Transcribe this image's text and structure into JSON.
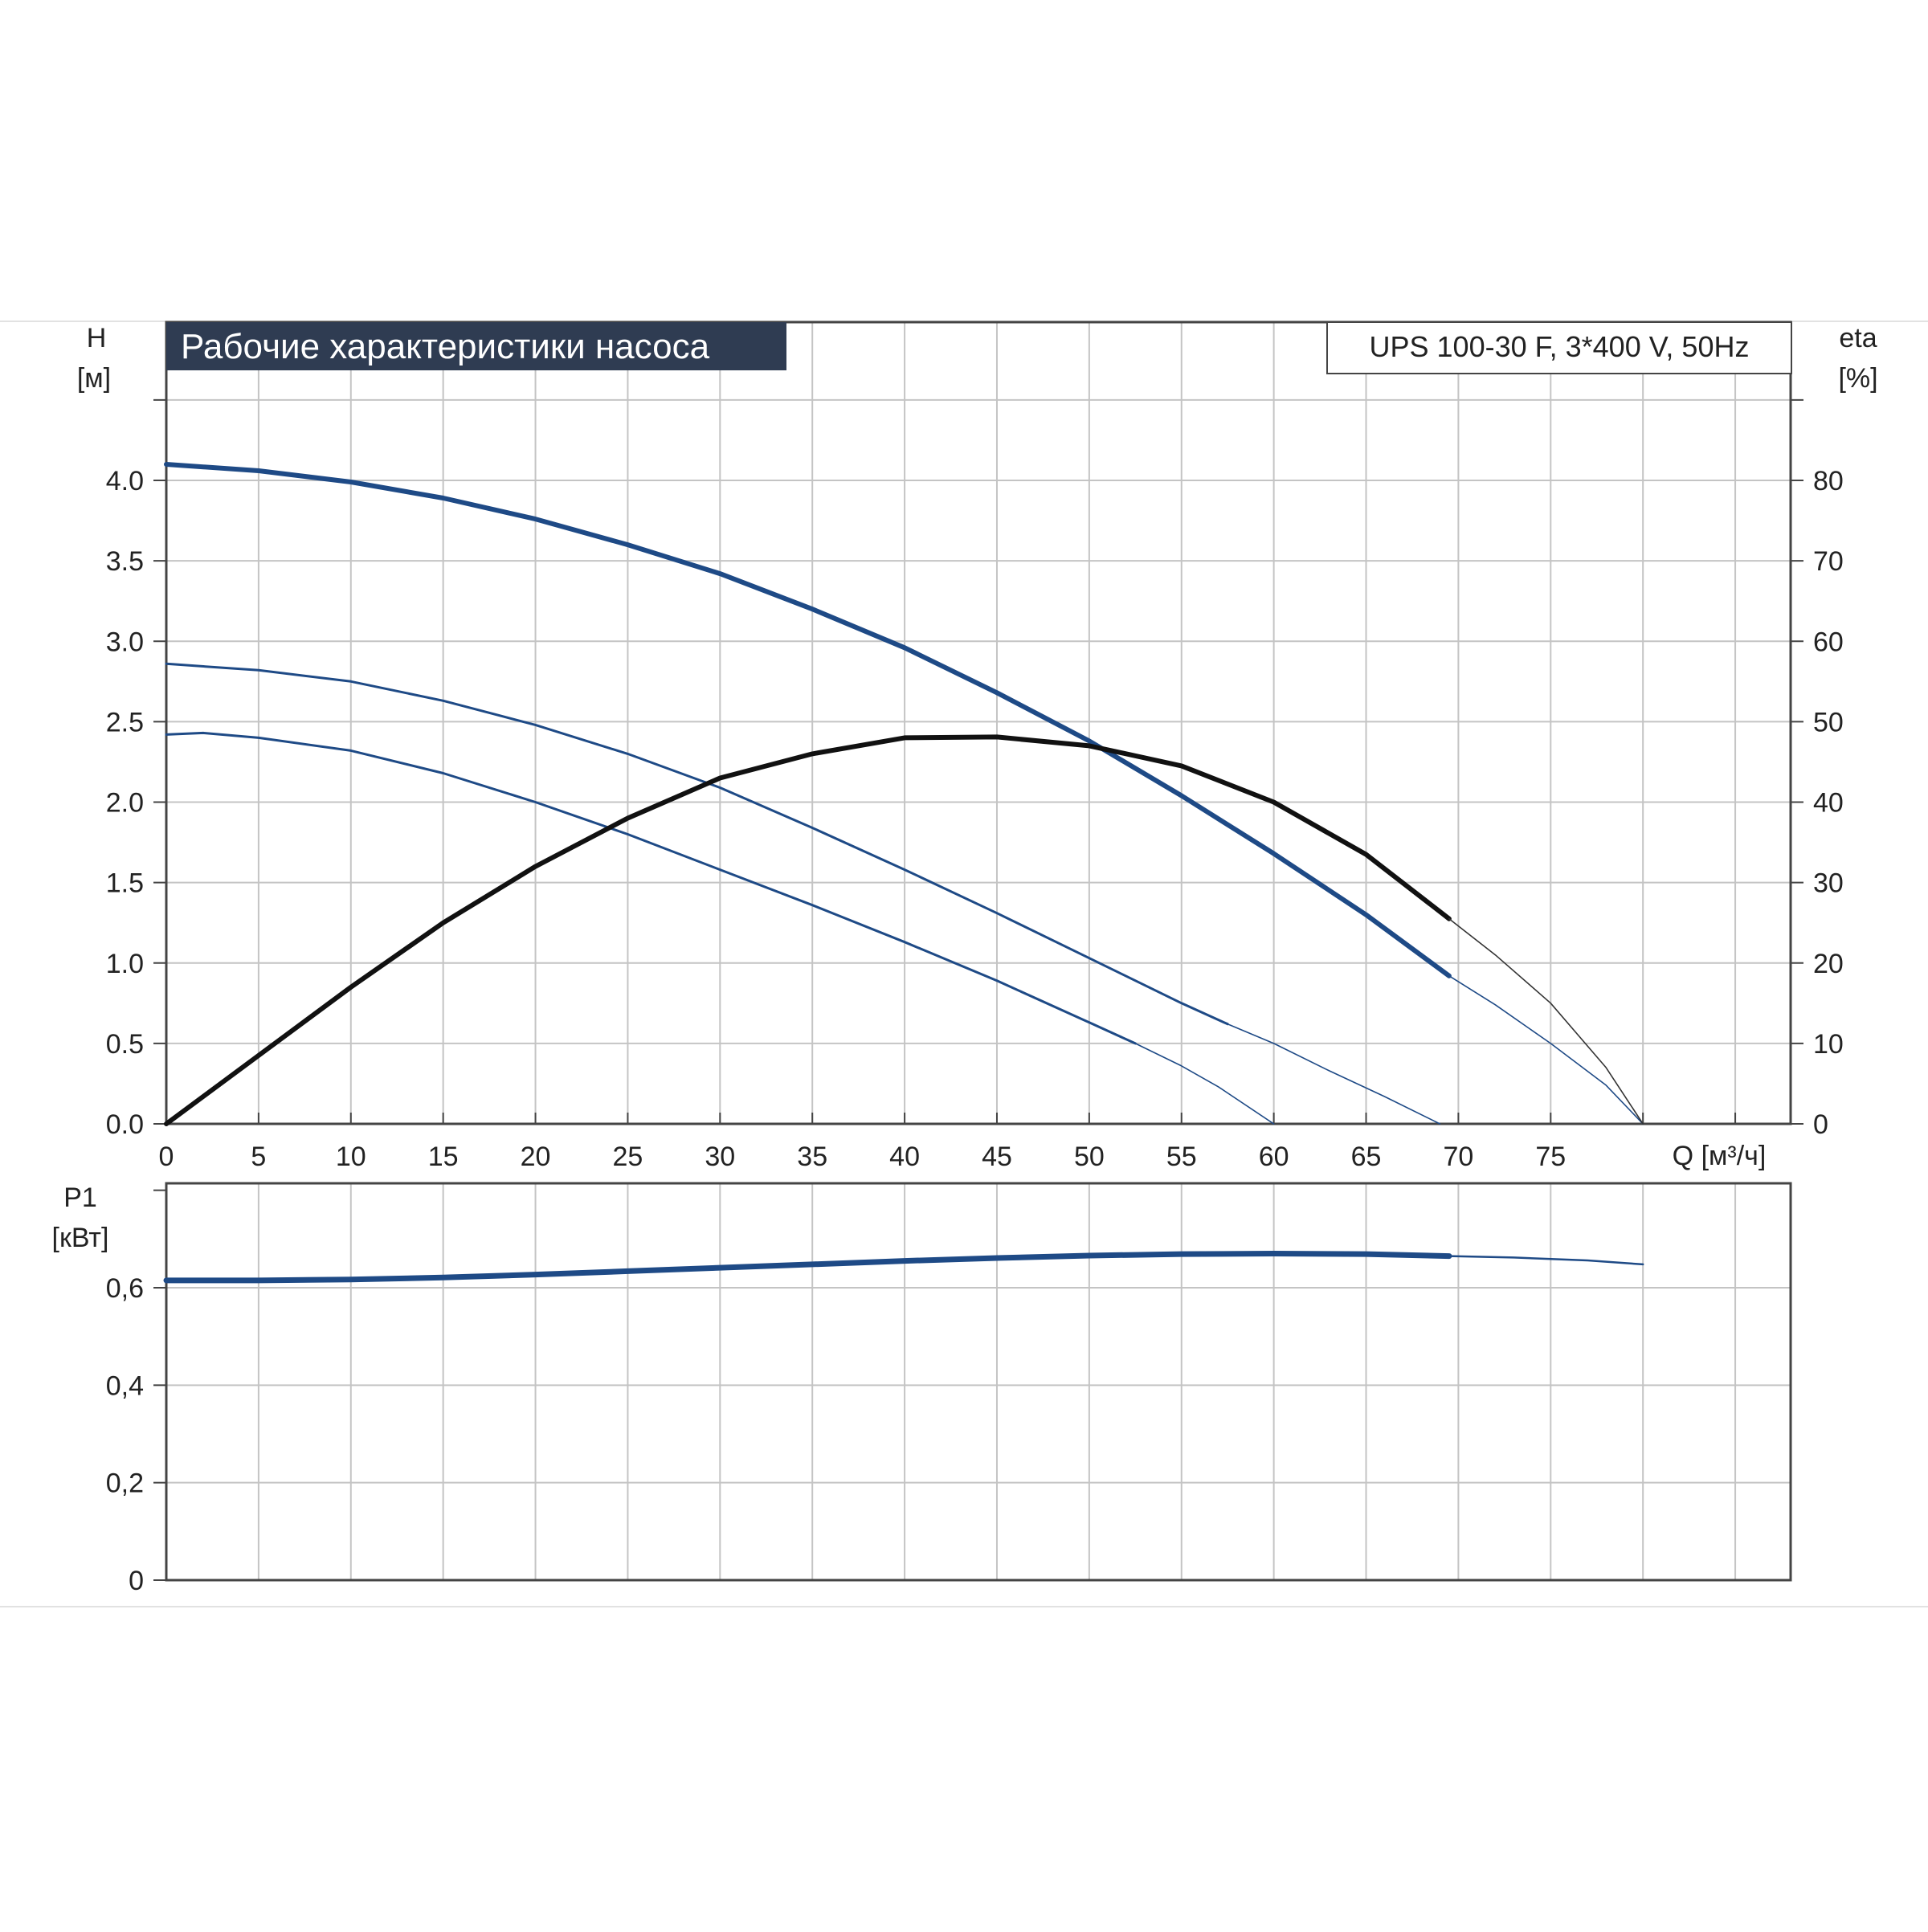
{
  "title": "Рабочие характеристики насоса",
  "model": "UPS 100-30 F, 3*400 V, 50Hz",
  "colors": {
    "title_bg": "#2f3c52",
    "curve_blue": "#1e4a86",
    "curve_black": "#111111",
    "grid": "#c4c4c4",
    "axis": "#444444"
  },
  "chart_data": [
    {
      "type": "line",
      "y_axis_left": {
        "label_line1": "H",
        "label_line2": "[м]",
        "ticks": [
          "0.0",
          "0.5",
          "1.0",
          "1.5",
          "2.0",
          "2.5",
          "3.0",
          "3.5",
          "4.0"
        ],
        "ylim": [
          0,
          4.5
        ]
      },
      "y_axis_right": {
        "label_line1": "eta",
        "label_line2": "[%]",
        "ticks": [
          "0",
          "10",
          "20",
          "30",
          "40",
          "50",
          "60",
          "70",
          "80"
        ],
        "ylim": [
          0,
          90
        ]
      },
      "x_axis": {
        "label": "Q [м³/ч]",
        "ticks": [
          "0",
          "5",
          "10",
          "15",
          "20",
          "25",
          "30",
          "35",
          "40",
          "45",
          "50",
          "55",
          "60",
          "65",
          "70",
          "75"
        ],
        "xlim": [
          0,
          88
        ]
      },
      "grid": true,
      "series": [
        {
          "axis": "left",
          "x": [
            0,
            5,
            10,
            15,
            20,
            25,
            30,
            35,
            40,
            45,
            50,
            55,
            60,
            65,
            69.5
          ],
          "y": [
            4.1,
            4.06,
            3.99,
            3.89,
            3.76,
            3.6,
            3.42,
            3.2,
            2.96,
            2.68,
            2.38,
            2.04,
            1.68,
            1.3,
            0.92
          ]
        },
        {
          "axis": "left",
          "x": [
            69.5,
            72,
            75,
            78,
            80
          ],
          "y": [
            0.92,
            0.74,
            0.5,
            0.24,
            0.0
          ]
        },
        {
          "axis": "left",
          "x": [
            0,
            5,
            10,
            15,
            20,
            25,
            30,
            35,
            40,
            45,
            50,
            55,
            57.5
          ],
          "y": [
            2.86,
            2.82,
            2.75,
            2.63,
            2.48,
            2.3,
            2.09,
            1.84,
            1.58,
            1.31,
            1.03,
            0.75,
            0.62
          ]
        },
        {
          "axis": "left",
          "x": [
            57.5,
            60,
            63,
            66,
            69
          ],
          "y": [
            0.62,
            0.5,
            0.33,
            0.17,
            0.0
          ]
        },
        {
          "axis": "left",
          "x": [
            0,
            2,
            5,
            10,
            15,
            20,
            25,
            30,
            35,
            40,
            45,
            50,
            52.5
          ],
          "y": [
            2.42,
            2.43,
            2.4,
            2.32,
            2.18,
            2.0,
            1.8,
            1.58,
            1.36,
            1.13,
            0.89,
            0.63,
            0.5
          ]
        },
        {
          "axis": "left",
          "x": [
            52.5,
            55,
            57,
            60
          ],
          "y": [
            0.5,
            0.36,
            0.23,
            0.0
          ]
        },
        {
          "axis": "right",
          "x": [
            0,
            5,
            10,
            15,
            20,
            25,
            30,
            35,
            40,
            45,
            50,
            55,
            60,
            65,
            69.5
          ],
          "y": [
            0,
            8.5,
            17,
            25,
            32,
            38,
            43,
            46,
            48,
            48.1,
            47,
            44.5,
            40,
            33.5,
            25.5
          ]
        },
        {
          "axis": "right",
          "x": [
            69.5,
            72,
            75,
            78,
            80
          ],
          "y": [
            25.5,
            21,
            15,
            7,
            0
          ]
        }
      ]
    },
    {
      "type": "line",
      "y_axis": {
        "label_line1": "P1",
        "label_line2": "[кВт]",
        "ticks": [
          "0",
          "0,2",
          "0,4",
          "0,6"
        ],
        "ylim": [
          0,
          0.8
        ]
      },
      "grid": true,
      "series": [
        {
          "x": [
            0,
            5,
            10,
            15,
            20,
            25,
            30,
            35,
            40,
            45,
            50,
            55,
            60,
            65,
            69.5
          ],
          "y": [
            0.615,
            0.615,
            0.617,
            0.621,
            0.627,
            0.634,
            0.641,
            0.648,
            0.655,
            0.661,
            0.666,
            0.669,
            0.67,
            0.669,
            0.665
          ]
        },
        {
          "x": [
            69.5,
            73,
            77,
            80
          ],
          "y": [
            0.665,
            0.662,
            0.656,
            0.648
          ]
        }
      ]
    }
  ]
}
